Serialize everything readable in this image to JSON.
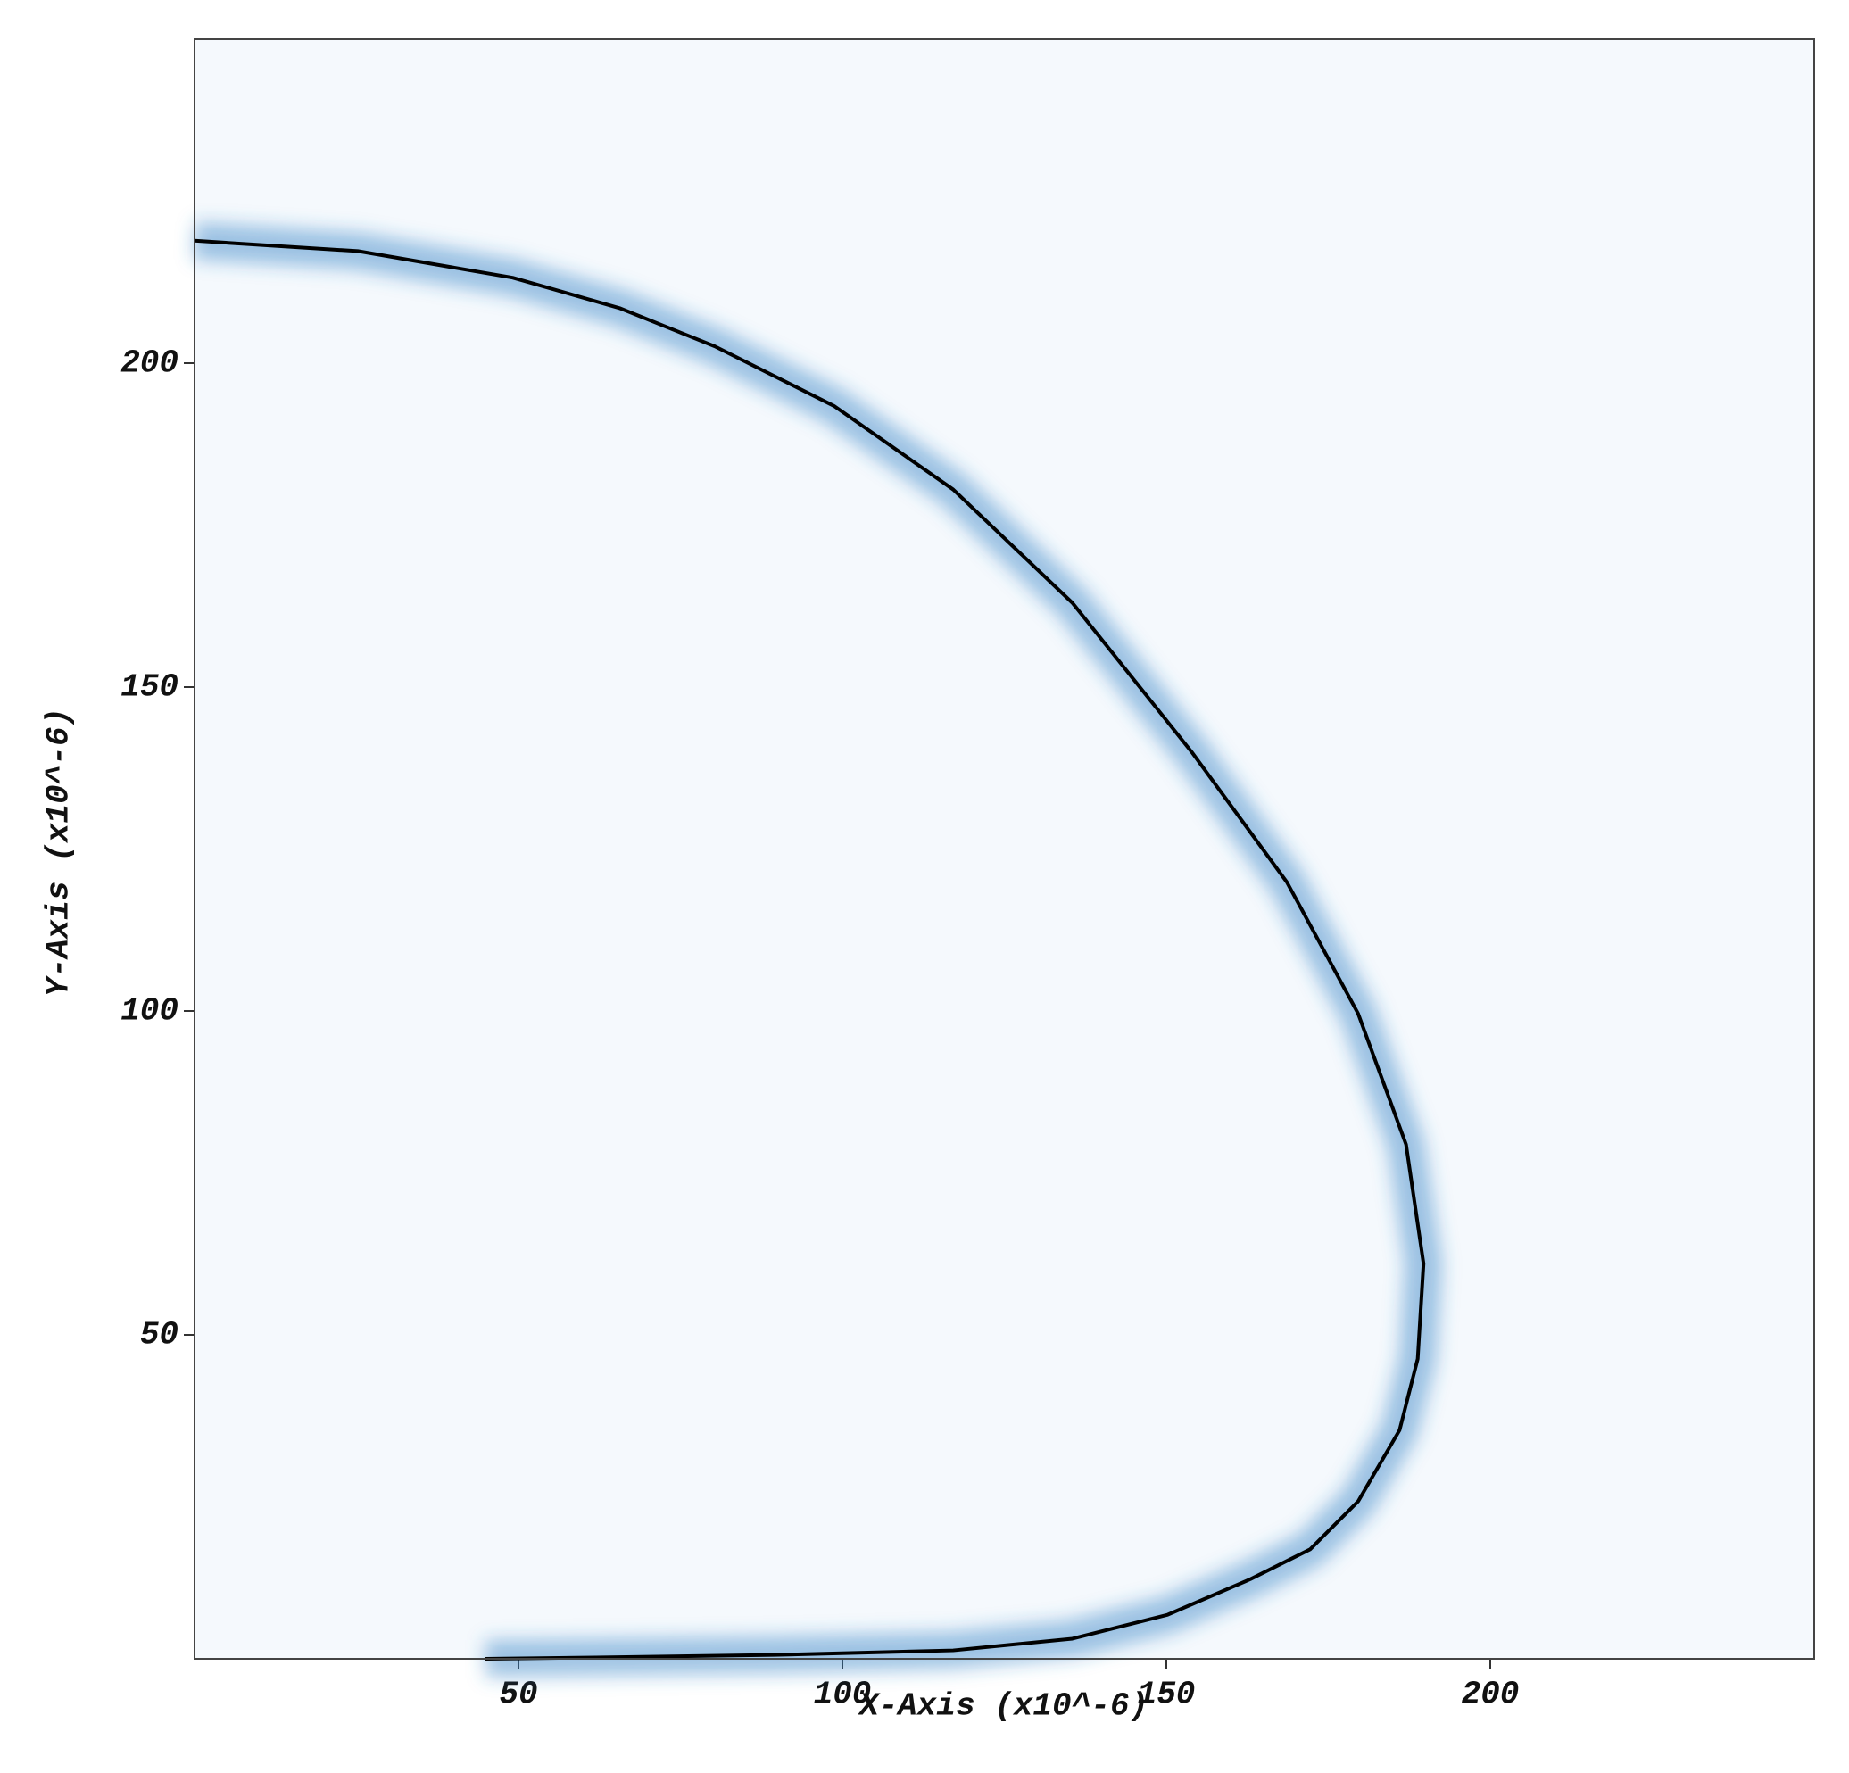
{
  "chart_data": {
    "type": "line",
    "x_label": "X-Axis (x10^-6)",
    "y_label": "Y-Axis (x10^-6)",
    "x": [
      0,
      25.2,
      49.1,
      65.6,
      80.3,
      98.7,
      117.1,
      135.5,
      153.9,
      168.6,
      179.6,
      187,
      189.7,
      188.8,
      186,
      179.6,
      172.2,
      163,
      150.2,
      135.5,
      117.1,
      89.5,
      61.9,
      44.9
    ],
    "values": [
      218.9,
      217.3,
      213.2,
      208.5,
      202.6,
      193.4,
      180.5,
      163,
      140,
      119.9,
      99.6,
      79.4,
      61,
      46.3,
      35.3,
      24.3,
      16.9,
      12.3,
      6.8,
      3.1,
      1.3,
      0.6,
      0.2,
      0
    ],
    "color": "#000000",
    "glow_color": "#2f7fc4",
    "background": "#f5f9fd",
    "xlim": [
      0,
      250
    ],
    "ylim": [
      0,
      250
    ],
    "xticks": [
      50,
      100,
      150,
      200
    ],
    "yticks": [
      50,
      100,
      150,
      200
    ]
  }
}
